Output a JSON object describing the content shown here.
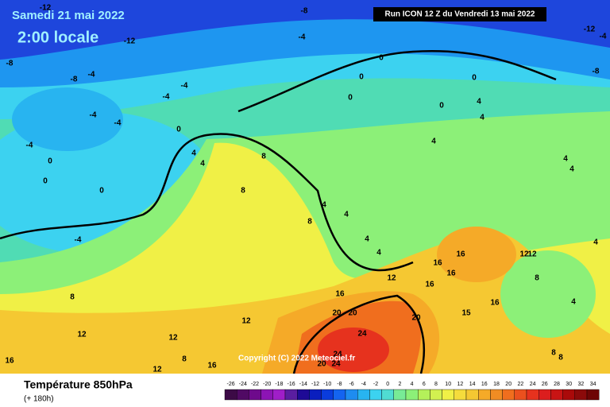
{
  "header": {
    "date": "Samedi 21 mai 2022",
    "time": "2:00 locale",
    "run": "Run ICON 12 Z du Vendredi 13 mai 2022"
  },
  "copyright": "Copyright (C) 2022 Meteociel.fr",
  "footer": {
    "title": "Température 850hPa",
    "lead": "(+ 180h)"
  },
  "legend": {
    "labels": [
      "-26",
      "-24",
      "-22",
      "-20",
      "-18",
      "-16",
      "-14",
      "-12",
      "-10",
      "-8",
      "-6",
      "-4",
      "-2",
      "0",
      "2",
      "4",
      "6",
      "8",
      "10",
      "12",
      "14",
      "16",
      "18",
      "20",
      "22",
      "24",
      "26",
      "28",
      "30",
      "32",
      "34"
    ],
    "colors": [
      "#3c0a46",
      "#500a64",
      "#6e0a8c",
      "#8c14b4",
      "#a01ec8",
      "#5a1ea0",
      "#1e0a96",
      "#0a1ebe",
      "#0a3cdc",
      "#1464f0",
      "#1e8cf0",
      "#28b4f0",
      "#3cd2f0",
      "#50dcd2",
      "#78eb96",
      "#8cf078",
      "#b4f05a",
      "#d2f050",
      "#f0f046",
      "#f5dc3c",
      "#f5c832",
      "#f5aa28",
      "#f08c23",
      "#f06e1e",
      "#eb501e",
      "#e6321e",
      "#dc1e1e",
      "#c81414",
      "#aa0a0a",
      "#8c0a0a",
      "#6e0505"
    ]
  },
  "contour_labels": [
    "-12",
    "-8",
    "-12",
    "-4",
    "-8",
    "-8",
    "-4",
    "-4",
    "-4",
    "-4",
    "-4",
    "-4",
    "0",
    "0",
    "0",
    "0",
    "4",
    "4",
    "-4",
    "8",
    "8",
    "0",
    "0",
    "0",
    "0",
    "0",
    "4",
    "4",
    "4",
    "4",
    "4",
    "4",
    "4",
    "8",
    "4",
    "4",
    "12",
    "16",
    "16",
    "16",
    "16",
    "16",
    "15",
    "12",
    "12",
    "4",
    "8",
    "4",
    "8",
    "12",
    "12",
    "12",
    "12",
    "16",
    "8",
    "16",
    "16",
    "20",
    "20",
    "20",
    "24",
    "24",
    "20",
    "24",
    "8",
    "8",
    "-4",
    "-8",
    "-12"
  ]
}
